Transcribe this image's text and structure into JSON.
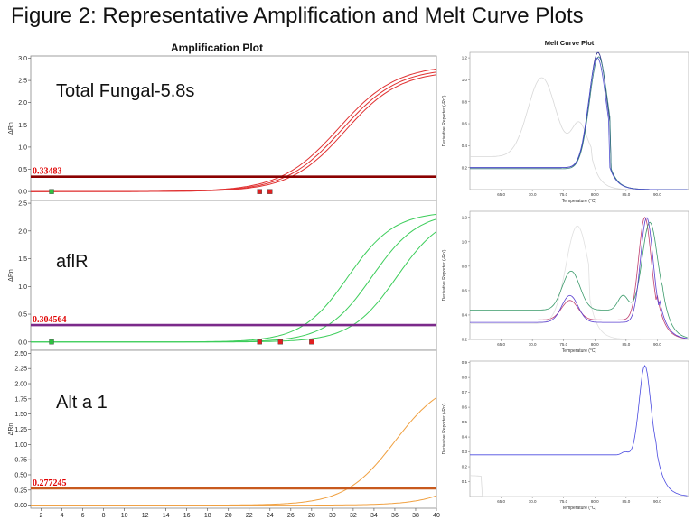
{
  "figure_title": "Figure 2: Representative Amplification and Melt Curve Plots",
  "chart_data": [
    {
      "type": "line",
      "title": "Amplification Plot",
      "ylabel": "ΔRn",
      "xlim": [
        1,
        40
      ],
      "x_ticks": [
        2,
        4,
        6,
        8,
        10,
        12,
        14,
        16,
        18,
        20,
        22,
        24,
        26,
        28,
        30,
        32,
        34,
        36,
        38,
        40
      ],
      "panels": [
        {
          "label": "Total Fungal-5.8s",
          "ylim": [
            -0.2,
            3.05
          ],
          "y_ticks": [
            "3.0",
            "2.5",
            "2.0",
            "1.5",
            "1.0",
            "0.5",
            "0.0"
          ],
          "y_tick_values": [
            3.0,
            2.5,
            2.0,
            1.5,
            1.0,
            0.5,
            0.0
          ],
          "threshold": 0.33483,
          "threshold_label": "0.33483",
          "threshold_color": "#8b0000",
          "curve_color": "#e03030",
          "series": [
            {
              "ct": 30.6,
              "max": 2.85,
              "slope": 0.36
            },
            {
              "ct": 30.9,
              "max": 2.78,
              "slope": 0.37
            },
            {
              "ct": 31.2,
              "max": 2.72,
              "slope": 0.38
            }
          ],
          "markers": [
            3,
            23,
            24
          ]
        },
        {
          "label": "aflR",
          "ylim": [
            -0.15,
            2.55
          ],
          "y_ticks": [
            "2.5",
            "2.0",
            "1.5",
            "1.0",
            "0.5",
            "0.0"
          ],
          "y_tick_values": [
            2.5,
            2.0,
            1.5,
            1.0,
            0.5,
            0.0
          ],
          "threshold": 0.304564,
          "threshold_label": "0.304564",
          "threshold_color": "#7b2a8a",
          "curve_color": "#3ccd5a",
          "series": [
            {
              "ct": 31.5,
              "max": 2.35,
              "slope": 0.45
            },
            {
              "ct": 33.8,
              "max": 2.35,
              "slope": 0.45
            },
            {
              "ct": 36.2,
              "max": 2.35,
              "slope": 0.45
            }
          ],
          "markers": [
            3,
            23,
            25,
            28
          ]
        },
        {
          "label": "Alt a 1",
          "ylim": [
            -0.05,
            2.55
          ],
          "y_ticks": [
            "2.50",
            "2.25",
            "2.00",
            "1.75",
            "1.50",
            "1.25",
            "1.00",
            "0.75",
            "0.50",
            "0.25",
            "0.00"
          ],
          "y_tick_values": [
            2.5,
            2.25,
            2.0,
            1.75,
            1.5,
            1.25,
            1.0,
            0.75,
            0.5,
            0.25,
            0.0
          ],
          "threshold": 0.277245,
          "threshold_label": "0.277245",
          "threshold_color": "#c85a1e",
          "curve_color": "#f0a040",
          "series": [
            {
              "ct": 36.0,
              "max": 2.1,
              "slope": 0.42
            },
            {
              "ct": 46.0,
              "max": 2.1,
              "slope": 0.42
            }
          ],
          "markers": []
        }
      ]
    },
    {
      "type": "line",
      "title": "Melt Curve Plot",
      "xlabel": "Temperature (°C)",
      "ylabel": "Derivative Reporter (-Rn')",
      "x_ticks": [
        "65.0",
        "70.0",
        "75.0",
        "80.0",
        "85.0",
        "90.0"
      ],
      "x_tick_values": [
        65,
        70,
        75,
        80,
        85,
        90
      ],
      "xlim": [
        60,
        95
      ],
      "panels": [
        {
          "ylim": [
            0.0,
            1.25
          ],
          "y_ticks": [
            "1.2",
            "1.0",
            "0.8",
            "0.6",
            "0.4",
            "0.2"
          ],
          "y_tick_values": [
            1.2,
            1.0,
            0.8,
            0.6,
            0.4,
            0.2
          ],
          "series": [
            {
              "color": "#2a2a8a",
              "base": 0.2,
              "peaks": [
                [
                  80.5,
                  1.05,
                  1.4
                ]
              ]
            },
            {
              "color": "#3a8080",
              "base": 0.19,
              "peaks": [
                [
                  80.6,
                  1.02,
                  1.45
                ]
              ]
            },
            {
              "color": "#5050d0",
              "base": 0.2,
              "peaks": [
                [
                  80.4,
                  1.0,
                  1.4
                ]
              ]
            },
            {
              "color": "#d8d8d8",
              "base": 0.3,
              "peaks": [
                [
                  71.5,
                  0.72,
                  2.2
                ],
                [
                  77.5,
                  0.3,
                  1.2
                ]
              ]
            }
          ]
        },
        {
          "ylim": [
            0.2,
            1.25
          ],
          "y_ticks": [
            "1.2",
            "1.0",
            "0.8",
            "0.6",
            "0.4",
            "0.2"
          ],
          "y_tick_values": [
            1.2,
            1.0,
            0.8,
            0.6,
            0.4,
            0.2
          ],
          "series": [
            {
              "color": "#3a9a6a",
              "base": 0.44,
              "peaks": [
                [
                  76.2,
                  0.32,
                  1.4
                ],
                [
                  84.5,
                  0.12,
                  0.8
                ],
                [
                  88.8,
                  0.72,
                  1.2
                ]
              ]
            },
            {
              "color": "#c04070",
              "base": 0.36,
              "peaks": [
                [
                  76.0,
                  0.16,
                  1.3
                ],
                [
                  88.0,
                  0.84,
                  1.0
                ]
              ]
            },
            {
              "color": "#5a3fd0",
              "base": 0.34,
              "peaks": [
                [
                  76.0,
                  0.22,
                  1.3
                ],
                [
                  88.3,
                  0.86,
                  1.0
                ]
              ]
            },
            {
              "color": "#e0e0e0",
              "base": 0.33,
              "peaks": [
                [
                  77.2,
                  0.8,
                  1.8
                ]
              ]
            }
          ]
        },
        {
          "ylim": [
            0.0,
            0.91
          ],
          "y_ticks": [
            "0.9",
            "0.8",
            "0.7",
            "0.6",
            "0.5",
            "0.4",
            "0.3",
            "0.2",
            "0.1"
          ],
          "y_tick_values": [
            0.9,
            0.8,
            0.7,
            0.6,
            0.5,
            0.4,
            0.3,
            0.2,
            0.1
          ],
          "series": [
            {
              "color": "#4a4ae0",
              "base": 0.28,
              "peaks": [
                [
                  88.0,
                  0.6,
                  0.9
                ],
                [
                  84.8,
                  0.02,
                  0.5
                ]
              ]
            },
            {
              "color": "#dadada",
              "base": 0.0,
              "peaks": [
                [
                  60,
                  0.14,
                  8.0
                ]
              ]
            }
          ]
        }
      ]
    }
  ]
}
